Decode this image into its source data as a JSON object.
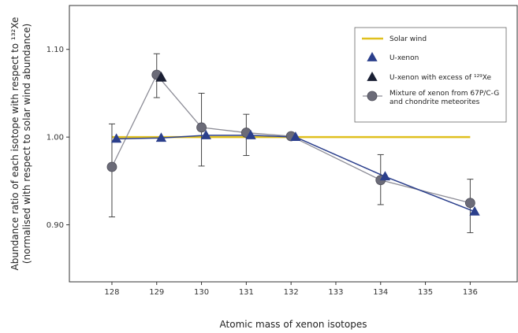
{
  "chart_data": {
    "type": "line",
    "xlabel": "Atomic mass of xenon isotopes",
    "ylabel_line1": "Abundance ratio of each isotope with respect to ¹³²Xe",
    "ylabel_line2": "(normalised with respect to solar wind abundance)",
    "x_ticks": [
      "128",
      "129",
      "130",
      "131",
      "132",
      "133",
      "134",
      "135",
      "136"
    ],
    "y_ticks": [
      "0.90",
      "1.00",
      "1.10"
    ],
    "xlim": [
      127.05,
      137.05
    ],
    "ylim": [
      0.835,
      1.15
    ],
    "grid": false,
    "legend_position": "top-right",
    "series": [
      {
        "name": "Solar wind",
        "color": "#e0c01e",
        "marker": "none",
        "x": [
          128,
          136
        ],
        "y": [
          1.0,
          1.0
        ]
      },
      {
        "name": "U-xenon",
        "color": "#2b3f8c",
        "marker": "triangle",
        "x": [
          128.1,
          129.1,
          130.1,
          131.1,
          132.1,
          134.1,
          136.1
        ],
        "y": [
          0.998,
          0.999,
          1.002,
          1.002,
          1.0,
          0.955,
          0.915
        ]
      },
      {
        "name": "U-xenon with excess of ¹²⁹Xe",
        "color": "#1a1f33",
        "marker": "triangle",
        "x": [
          129.1
        ],
        "y": [
          1.068
        ]
      },
      {
        "name": "Mixture of xenon from 67P/C-G and chondrite meteorites",
        "name_line1": "Mixture of xenon from 67P/C-G",
        "name_line2": "and chondrite meteorites",
        "color": "#6b6b78",
        "marker": "circle",
        "x": [
          128,
          129,
          130,
          131,
          132,
          134,
          136
        ],
        "y": [
          0.966,
          1.071,
          1.011,
          1.005,
          1.001,
          0.951,
          0.925
        ],
        "err_low": [
          0.909,
          1.045,
          0.967,
          0.979,
          1.001,
          0.923,
          0.891
        ],
        "err_high": [
          1.015,
          1.095,
          1.05,
          1.026,
          1.001,
          0.98,
          0.952
        ]
      }
    ],
    "legend": [
      {
        "label": "Solar wind",
        "symbol": "line",
        "color": "#e0c01e"
      },
      {
        "label": "U-xenon",
        "symbol": "triangle",
        "color": "#2b3f8c"
      },
      {
        "label": "U-xenon with excess of ¹²⁹Xe",
        "symbol": "triangle",
        "color": "#1a1f33"
      },
      {
        "label_line1": "Mixture of xenon from 67P/C-G",
        "label_line2": "and chondrite meteorites",
        "symbol": "circle",
        "color": "#6b6b78"
      }
    ]
  }
}
